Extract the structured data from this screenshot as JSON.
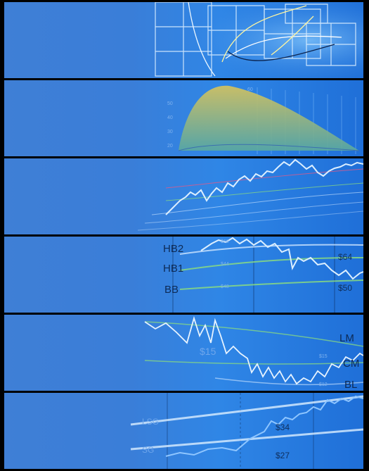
{
  "panel2": {
    "ticks": [
      "60",
      "50",
      "40",
      "30",
      "20"
    ]
  },
  "panel4": {
    "labels": [
      "HB2",
      "HB1",
      "BB"
    ],
    "prices": [
      "$64",
      "$50"
    ],
    "small": [
      "$68",
      "$44",
      "$48"
    ]
  },
  "panel5": {
    "prices": [
      "$15",
      "$15",
      "$12"
    ],
    "letters": [
      "LM",
      "CM",
      "BL"
    ]
  },
  "panel6": {
    "prices": [
      "$34",
      "$27"
    ],
    "side": [
      "LSG",
      "SG"
    ]
  }
}
